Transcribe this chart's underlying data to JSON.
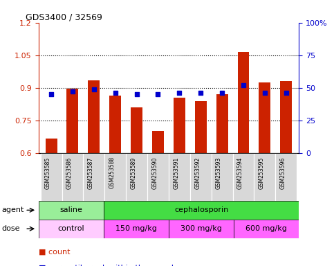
{
  "title": "GDS3400 / 32569",
  "samples": [
    "GSM253585",
    "GSM253586",
    "GSM253587",
    "GSM253588",
    "GSM253589",
    "GSM253590",
    "GSM253591",
    "GSM253592",
    "GSM253593",
    "GSM253594",
    "GSM253595",
    "GSM253596"
  ],
  "bar_values": [
    0.665,
    0.895,
    0.935,
    0.865,
    0.81,
    0.7,
    0.855,
    0.84,
    0.87,
    1.065,
    0.925,
    0.93
  ],
  "dot_percentiles": [
    45,
    47,
    49,
    46,
    45,
    45,
    46,
    46,
    46,
    52,
    46,
    46
  ],
  "bar_color": "#cc2200",
  "dot_color": "#0000cc",
  "ylim_left": [
    0.6,
    1.2
  ],
  "ylim_right": [
    0,
    100
  ],
  "yticks_left": [
    0.6,
    0.75,
    0.9,
    1.05,
    1.2
  ],
  "yticks_right": [
    0,
    25,
    50,
    75,
    100
  ],
  "ytick_labels_left": [
    "0.6",
    "0.75",
    "0.9",
    "1.05",
    "1.2"
  ],
  "ytick_labels_right": [
    "0",
    "25",
    "50",
    "75",
    "100%"
  ],
  "hlines": [
    0.75,
    0.9,
    1.05
  ],
  "agent_groups": [
    {
      "label": "saline",
      "start": 0,
      "end": 3,
      "color": "#99ee99"
    },
    {
      "label": "cephalosporin",
      "start": 3,
      "end": 12,
      "color": "#44dd44"
    }
  ],
  "dose_groups": [
    {
      "label": "control",
      "start": 0,
      "end": 3,
      "color": "#ffccff"
    },
    {
      "label": "150 mg/kg",
      "start": 3,
      "end": 6,
      "color": "#ff66ff"
    },
    {
      "label": "300 mg/kg",
      "start": 6,
      "end": 9,
      "color": "#ff66ff"
    },
    {
      "label": "600 mg/kg",
      "start": 9,
      "end": 12,
      "color": "#ff66ff"
    }
  ],
  "background_color": "#ffffff",
  "tick_bg_color": "#d8d8d8"
}
